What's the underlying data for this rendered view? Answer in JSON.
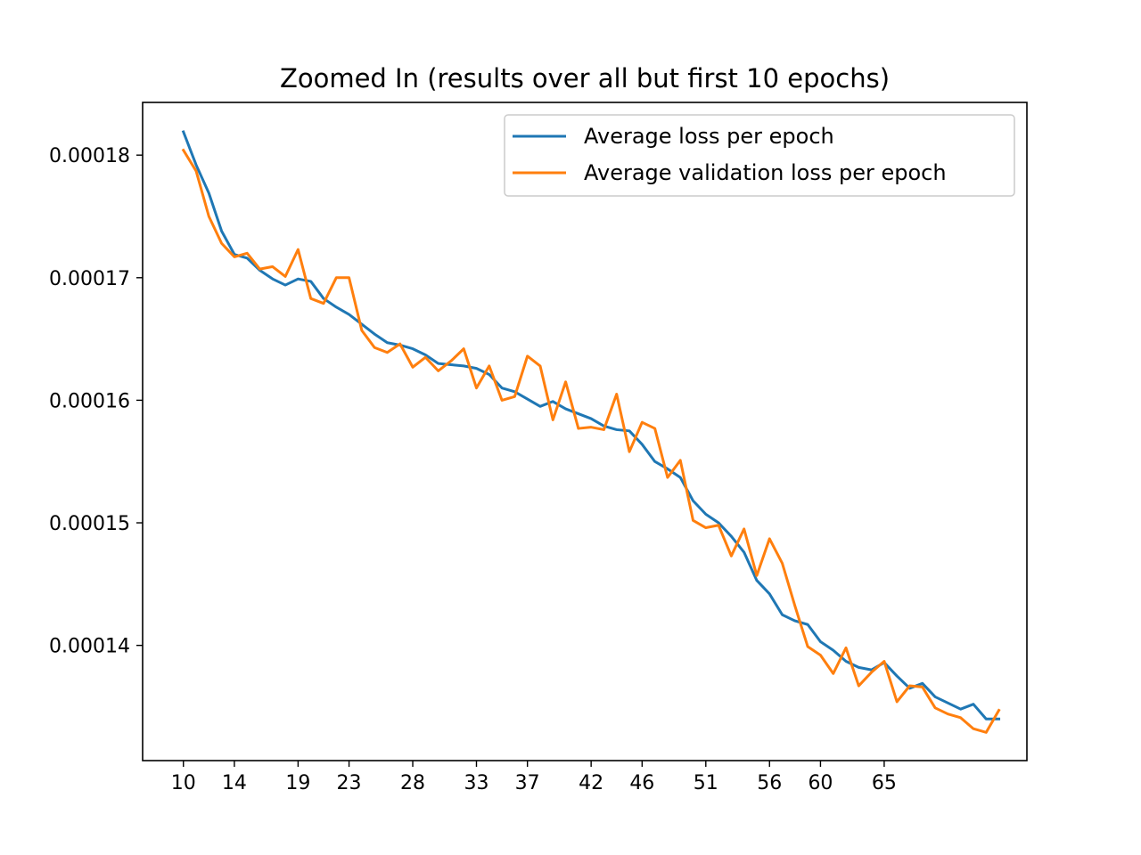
{
  "chart_data": {
    "type": "line",
    "title": "Zoomed In (results over all but first 10 epochs)",
    "xlabel": "",
    "ylabel": "",
    "x_start": 10,
    "xlim": [
      6.8,
      76.2
    ],
    "ylim": [
      0.0001306,
      0.0001843
    ],
    "x_tick_labels": [
      "10",
      "14",
      "19",
      "23",
      "28",
      "33",
      "37",
      "42",
      "46",
      "51",
      "56",
      "60",
      "65"
    ],
    "y_ticks": [
      0.00014,
      0.00015,
      0.00016,
      0.00017,
      0.00018
    ],
    "y_tick_labels": [
      "0.00014",
      "0.00015",
      "0.00016",
      "0.00017",
      "0.00018"
    ],
    "grid": false,
    "legend_position": "upper-right",
    "series": [
      {
        "name": "Average loss per epoch",
        "color": "#1f77b4",
        "values": [
          0.0001819,
          0.0001792,
          0.0001769,
          0.0001738,
          0.0001719,
          0.0001716,
          0.0001706,
          0.0001699,
          0.0001694,
          0.0001699,
          0.0001697,
          0.0001683,
          0.0001676,
          0.000167,
          0.0001662,
          0.0001654,
          0.0001647,
          0.0001645,
          0.0001642,
          0.0001637,
          0.000163,
          0.0001629,
          0.0001628,
          0.0001626,
          0.0001621,
          0.000161,
          0.0001607,
          0.0001601,
          0.0001595,
          0.0001599,
          0.0001593,
          0.0001589,
          0.0001585,
          0.0001579,
          0.0001576,
          0.0001575,
          0.0001564,
          0.000155,
          0.0001544,
          0.0001537,
          0.0001518,
          0.0001507,
          0.00015,
          0.0001489,
          0.0001476,
          0.0001453,
          0.0001442,
          0.0001425,
          0.000142,
          0.0001417,
          0.0001403,
          0.0001396,
          0.0001387,
          0.0001382,
          0.000138,
          0.0001386,
          0.0001375,
          0.0001365,
          0.0001369,
          0.0001358,
          0.0001353,
          0.0001348,
          0.0001352,
          0.000134,
          0.000134
        ]
      },
      {
        "name": "Average validation loss per epoch",
        "color": "#ff7f0e",
        "values": [
          0.0001804,
          0.0001787,
          0.000175,
          0.0001728,
          0.0001717,
          0.000172,
          0.0001707,
          0.0001709,
          0.0001701,
          0.0001723,
          0.0001683,
          0.0001679,
          0.00017,
          0.00017,
          0.0001657,
          0.0001643,
          0.0001639,
          0.0001646,
          0.0001627,
          0.0001635,
          0.0001624,
          0.0001632,
          0.0001642,
          0.000161,
          0.0001628,
          0.00016,
          0.0001603,
          0.0001636,
          0.0001628,
          0.0001584,
          0.0001615,
          0.0001577,
          0.0001578,
          0.0001576,
          0.0001605,
          0.0001558,
          0.0001582,
          0.0001577,
          0.0001537,
          0.0001551,
          0.0001502,
          0.0001496,
          0.0001498,
          0.0001473,
          0.0001495,
          0.0001457,
          0.0001487,
          0.0001467,
          0.0001432,
          0.0001399,
          0.0001392,
          0.0001377,
          0.0001398,
          0.0001367,
          0.0001378,
          0.0001387,
          0.0001354,
          0.0001367,
          0.0001366,
          0.0001349,
          0.0001344,
          0.0001341,
          0.0001332,
          0.0001329,
          0.0001347
        ]
      }
    ]
  }
}
